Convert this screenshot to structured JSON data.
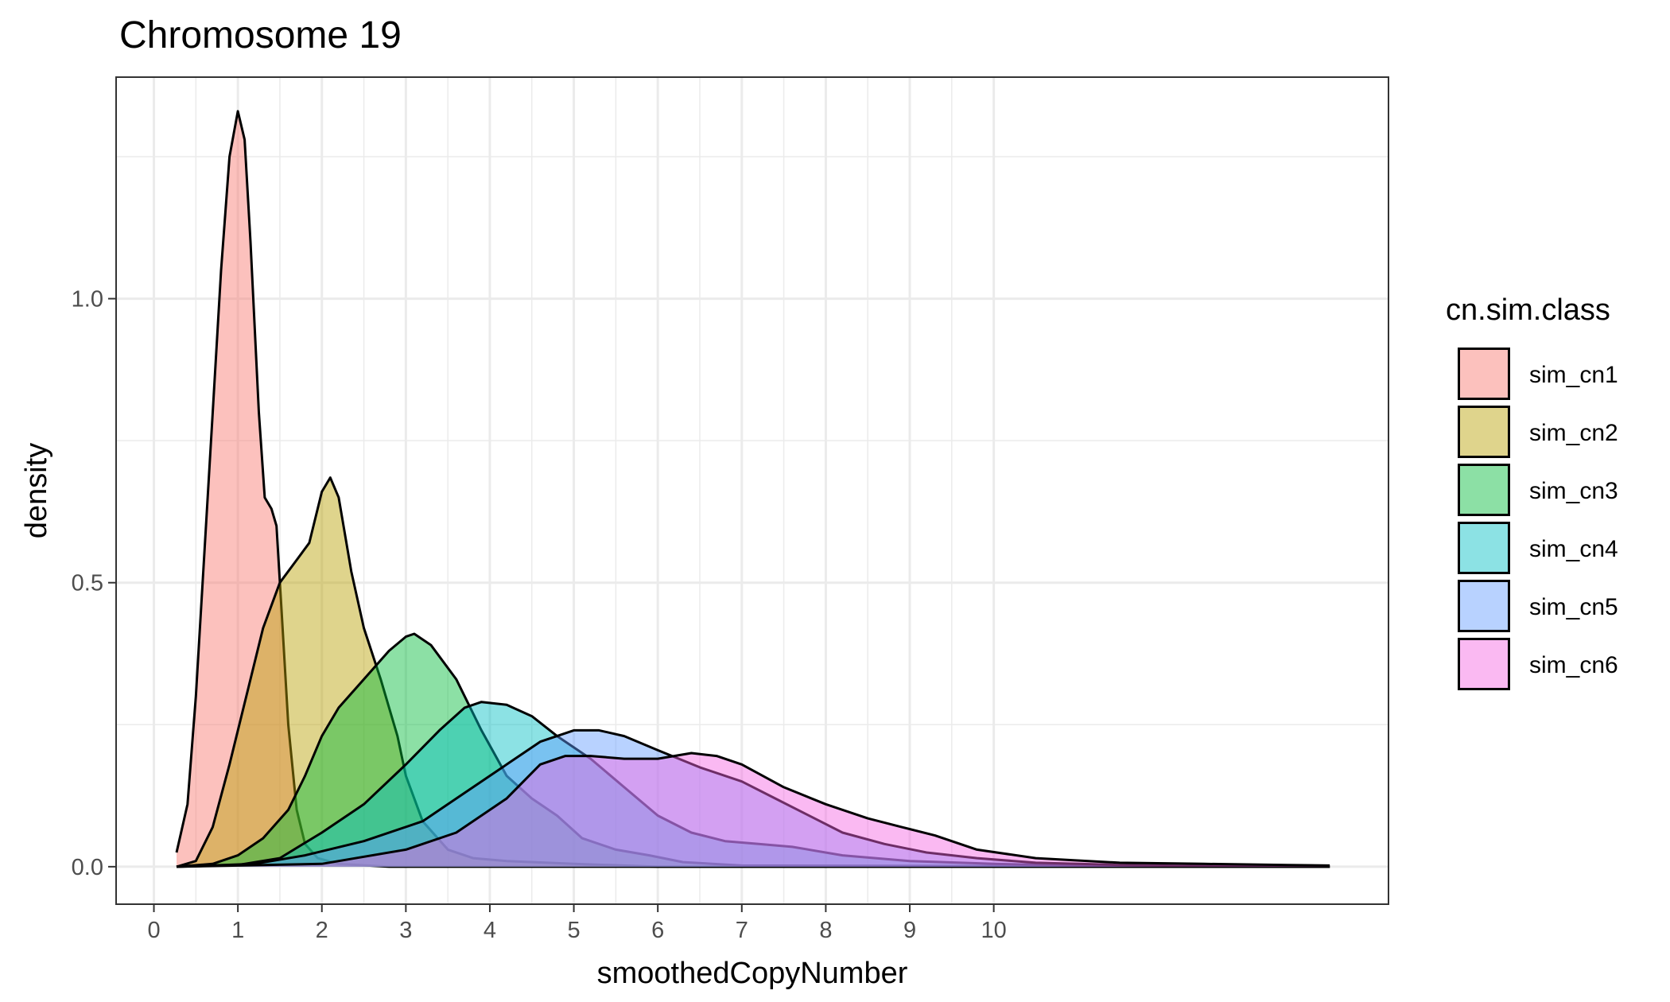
{
  "chart_data": {
    "type": "area",
    "subtype": "density",
    "title": "Chromosome 19",
    "xlabel": "smoothedCopyNumber",
    "ylabel": "density",
    "xlim": [
      -0.45,
      14.7
    ],
    "ylim": [
      -0.066,
      1.39
    ],
    "x_ticks": [
      0,
      1,
      2,
      3,
      4,
      5,
      6,
      7,
      8,
      9,
      10
    ],
    "y_ticks": [
      0.0,
      0.5,
      1.0
    ],
    "y_tick_labels": [
      "0.0",
      "0.5",
      "1.0"
    ],
    "grid": true,
    "fill_opacity": 0.45,
    "legend": {
      "title": "cn.sim.class",
      "position": "right"
    },
    "series": [
      {
        "name": "sim_cn1",
        "color": "#F8766D",
        "points": [
          [
            0.27,
            0.025
          ],
          [
            0.4,
            0.11
          ],
          [
            0.5,
            0.3
          ],
          [
            0.6,
            0.55
          ],
          [
            0.7,
            0.8
          ],
          [
            0.8,
            1.05
          ],
          [
            0.9,
            1.25
          ],
          [
            1.0,
            1.33
          ],
          [
            1.08,
            1.28
          ],
          [
            1.15,
            1.1
          ],
          [
            1.25,
            0.8
          ],
          [
            1.32,
            0.65
          ],
          [
            1.4,
            0.63
          ],
          [
            1.46,
            0.6
          ],
          [
            1.52,
            0.45
          ],
          [
            1.6,
            0.25
          ],
          [
            1.7,
            0.1
          ],
          [
            1.8,
            0.04
          ],
          [
            1.95,
            0.015
          ],
          [
            2.2,
            0.005
          ],
          [
            2.8,
            0.0
          ],
          [
            14.0,
            0.0
          ]
        ]
      },
      {
        "name": "sim_cn2",
        "color": "#B79F00",
        "points": [
          [
            0.27,
            0.0
          ],
          [
            0.5,
            0.01
          ],
          [
            0.7,
            0.07
          ],
          [
            0.9,
            0.18
          ],
          [
            1.1,
            0.3
          ],
          [
            1.3,
            0.42
          ],
          [
            1.5,
            0.5
          ],
          [
            1.7,
            0.54
          ],
          [
            1.85,
            0.57
          ],
          [
            2.0,
            0.66
          ],
          [
            2.1,
            0.685
          ],
          [
            2.2,
            0.65
          ],
          [
            2.35,
            0.52
          ],
          [
            2.5,
            0.42
          ],
          [
            2.7,
            0.33
          ],
          [
            2.9,
            0.23
          ],
          [
            3.0,
            0.16
          ],
          [
            3.2,
            0.08
          ],
          [
            3.5,
            0.03
          ],
          [
            3.8,
            0.015
          ],
          [
            4.2,
            0.01
          ],
          [
            5.0,
            0.005
          ],
          [
            6.0,
            0.0
          ],
          [
            14.0,
            0.0
          ]
        ]
      },
      {
        "name": "sim_cn3",
        "color": "#00BA38",
        "points": [
          [
            0.27,
            0.0
          ],
          [
            0.7,
            0.005
          ],
          [
            1.0,
            0.02
          ],
          [
            1.3,
            0.05
          ],
          [
            1.6,
            0.1
          ],
          [
            1.8,
            0.16
          ],
          [
            2.0,
            0.23
          ],
          [
            2.2,
            0.28
          ],
          [
            2.5,
            0.33
          ],
          [
            2.8,
            0.38
          ],
          [
            3.0,
            0.405
          ],
          [
            3.1,
            0.41
          ],
          [
            3.3,
            0.39
          ],
          [
            3.6,
            0.33
          ],
          [
            3.9,
            0.24
          ],
          [
            4.2,
            0.16
          ],
          [
            4.5,
            0.12
          ],
          [
            4.8,
            0.09
          ],
          [
            5.1,
            0.05
          ],
          [
            5.5,
            0.03
          ],
          [
            5.9,
            0.02
          ],
          [
            6.3,
            0.008
          ],
          [
            7.0,
            0.002
          ],
          [
            14.0,
            0.0
          ]
        ]
      },
      {
        "name": "sim_cn4",
        "color": "#00BFC4",
        "points": [
          [
            0.27,
            0.0
          ],
          [
            1.0,
            0.003
          ],
          [
            1.5,
            0.015
          ],
          [
            2.0,
            0.06
          ],
          [
            2.5,
            0.11
          ],
          [
            3.0,
            0.18
          ],
          [
            3.4,
            0.24
          ],
          [
            3.7,
            0.28
          ],
          [
            3.9,
            0.29
          ],
          [
            4.2,
            0.285
          ],
          [
            4.5,
            0.265
          ],
          [
            4.8,
            0.23
          ],
          [
            5.2,
            0.19
          ],
          [
            5.6,
            0.14
          ],
          [
            6.0,
            0.09
          ],
          [
            6.4,
            0.06
          ],
          [
            6.8,
            0.045
          ],
          [
            7.2,
            0.04
          ],
          [
            7.6,
            0.035
          ],
          [
            8.2,
            0.02
          ],
          [
            9.0,
            0.01
          ],
          [
            10.0,
            0.005
          ],
          [
            11.0,
            0.002
          ],
          [
            14.0,
            0.0
          ]
        ]
      },
      {
        "name": "sim_cn5",
        "color": "#619CFF",
        "points": [
          [
            0.27,
            0.0
          ],
          [
            1.2,
            0.005
          ],
          [
            1.8,
            0.02
          ],
          [
            2.5,
            0.045
          ],
          [
            3.2,
            0.08
          ],
          [
            3.7,
            0.13
          ],
          [
            4.2,
            0.18
          ],
          [
            4.6,
            0.22
          ],
          [
            5.0,
            0.24
          ],
          [
            5.3,
            0.24
          ],
          [
            5.6,
            0.23
          ],
          [
            6.0,
            0.205
          ],
          [
            6.5,
            0.175
          ],
          [
            7.0,
            0.15
          ],
          [
            7.4,
            0.12
          ],
          [
            7.8,
            0.09
          ],
          [
            8.2,
            0.06
          ],
          [
            8.7,
            0.04
          ],
          [
            9.2,
            0.025
          ],
          [
            9.8,
            0.015
          ],
          [
            10.5,
            0.007
          ],
          [
            11.5,
            0.003
          ],
          [
            12.5,
            0.001
          ],
          [
            14.0,
            0.0
          ]
        ]
      },
      {
        "name": "sim_cn6",
        "color": "#F564E3",
        "points": [
          [
            0.27,
            0.0
          ],
          [
            2.0,
            0.005
          ],
          [
            3.0,
            0.03
          ],
          [
            3.6,
            0.06
          ],
          [
            4.2,
            0.12
          ],
          [
            4.6,
            0.18
          ],
          [
            4.9,
            0.195
          ],
          [
            5.2,
            0.195
          ],
          [
            5.6,
            0.19
          ],
          [
            6.0,
            0.19
          ],
          [
            6.4,
            0.2
          ],
          [
            6.7,
            0.195
          ],
          [
            7.0,
            0.18
          ],
          [
            7.5,
            0.14
          ],
          [
            8.0,
            0.11
          ],
          [
            8.5,
            0.085
          ],
          [
            8.9,
            0.07
          ],
          [
            9.3,
            0.055
          ],
          [
            9.8,
            0.03
          ],
          [
            10.5,
            0.015
          ],
          [
            11.5,
            0.007
          ],
          [
            12.5,
            0.005
          ],
          [
            13.5,
            0.003
          ],
          [
            14.0,
            0.002
          ]
        ]
      }
    ]
  }
}
